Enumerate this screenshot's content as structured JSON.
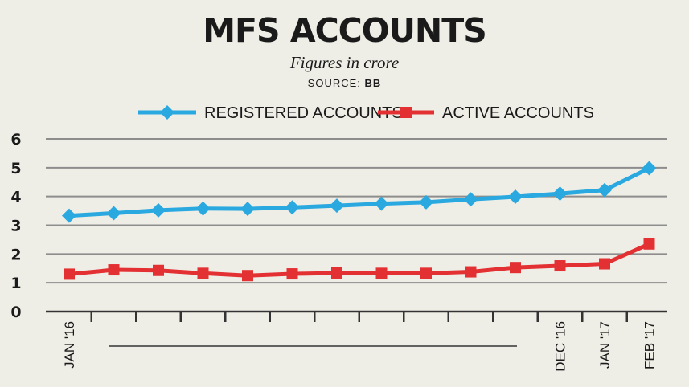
{
  "title": "MFS ACCOUNTS",
  "subtitle": "Figures in crore",
  "source_label": "SOURCE:",
  "source_value": "BB",
  "chart_data": {
    "type": "line",
    "title": "MFS ACCOUNTS",
    "subtitle": "Figures in crore",
    "x_tick_labels": [
      "JAN '16",
      "DEC '16",
      "JAN '17",
      "FEB '17"
    ],
    "x": [
      "Jan '16",
      "Feb '16",
      "Mar '16",
      "Apr '16",
      "May '16",
      "Jun '16",
      "Jul '16",
      "Aug '16",
      "Sep '16",
      "Oct '16",
      "Nov '16",
      "Dec '16",
      "Jan '17",
      "Feb '17"
    ],
    "series": [
      {
        "name": "REGISTERED ACCOUNTS",
        "color": "#2aa8e0",
        "marker": "diamond",
        "values": [
          3.33,
          3.42,
          3.52,
          3.58,
          3.57,
          3.62,
          3.68,
          3.75,
          3.8,
          3.9,
          3.99,
          4.1,
          4.22,
          4.98
        ]
      },
      {
        "name": "ACTIVE ACCOUNTS",
        "color": "#e33033",
        "marker": "square",
        "values": [
          1.3,
          1.45,
          1.43,
          1.33,
          1.25,
          1.31,
          1.34,
          1.33,
          1.33,
          1.38,
          1.53,
          1.59,
          1.66,
          2.35
        ]
      }
    ],
    "ylim": [
      0,
      6
    ],
    "yticks": [
      0,
      1,
      2,
      3,
      4,
      5,
      6
    ],
    "grid": true,
    "legend_position": "top"
  }
}
